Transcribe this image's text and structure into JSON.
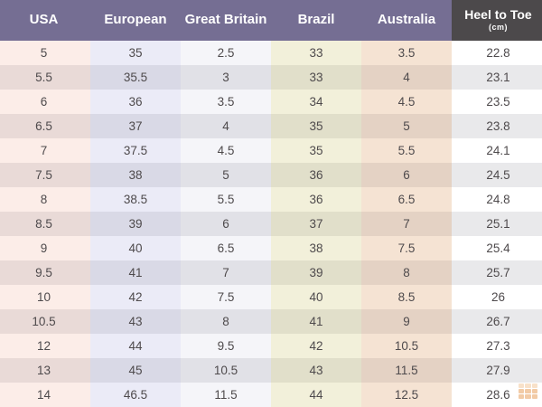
{
  "table": {
    "columns": [
      {
        "label": "USA",
        "header_bg": "#756e93",
        "header_fg": "#ffffff",
        "tint": "rgba(235,150,120,0.17)"
      },
      {
        "label": "European",
        "header_bg": "#756e93",
        "header_fg": "#ffffff",
        "tint": "rgba(150,150,215,0.19)"
      },
      {
        "label": "Great Britain",
        "header_bg": "#756e93",
        "header_fg": "#ffffff",
        "tint": "rgba(175,175,205,0.12)"
      },
      {
        "label": "Brazil",
        "header_bg": "#756e93",
        "header_fg": "#ffffff",
        "tint": "rgba(195,185,85,0.22)"
      },
      {
        "label": "Australia",
        "header_bg": "#756e93",
        "header_fg": "#ffffff",
        "tint": "rgba(215,145,85,0.26)"
      },
      {
        "label": "Heel to Toe",
        "sublabel": "(cm)",
        "header_bg": "#4c494b",
        "header_fg": "#ffffff",
        "tint": "transparent"
      }
    ],
    "rows": [
      [
        "5",
        "35",
        "2.5",
        "33",
        "3.5",
        "22.8"
      ],
      [
        "5.5",
        "35.5",
        "3",
        "33",
        "4",
        "23.1"
      ],
      [
        "6",
        "36",
        "3.5",
        "34",
        "4.5",
        "23.5"
      ],
      [
        "6.5",
        "37",
        "4",
        "35",
        "5",
        "23.8"
      ],
      [
        "7",
        "37.5",
        "4.5",
        "35",
        "5.5",
        "24.1"
      ],
      [
        "7.5",
        "38",
        "5",
        "36",
        "6",
        "24.5"
      ],
      [
        "8",
        "38.5",
        "5.5",
        "36",
        "6.5",
        "24.8"
      ],
      [
        "8.5",
        "39",
        "6",
        "37",
        "7",
        "25.1"
      ],
      [
        "9",
        "40",
        "6.5",
        "38",
        "7.5",
        "25.4"
      ],
      [
        "9.5",
        "41",
        "7",
        "39",
        "8",
        "25.7"
      ],
      [
        "10",
        "42",
        "7.5",
        "40",
        "8.5",
        "26"
      ],
      [
        "10.5",
        "43",
        "8",
        "41",
        "9",
        "26.7"
      ],
      [
        "12",
        "44",
        "9.5",
        "42",
        "10.5",
        "27.3"
      ],
      [
        "13",
        "45",
        "10.5",
        "43",
        "11.5",
        "27.9"
      ],
      [
        "14",
        "46.5",
        "11.5",
        "44",
        "12.5",
        "28.6"
      ]
    ],
    "stripe_color": "#e9e9eb",
    "row_color": "#ffffff",
    "text_color": "#4e4a4c"
  },
  "watermark": {
    "icon": "table-grid-watermark-icon",
    "cell_color": "#e9a25f",
    "header_color": "#f3c99d"
  }
}
